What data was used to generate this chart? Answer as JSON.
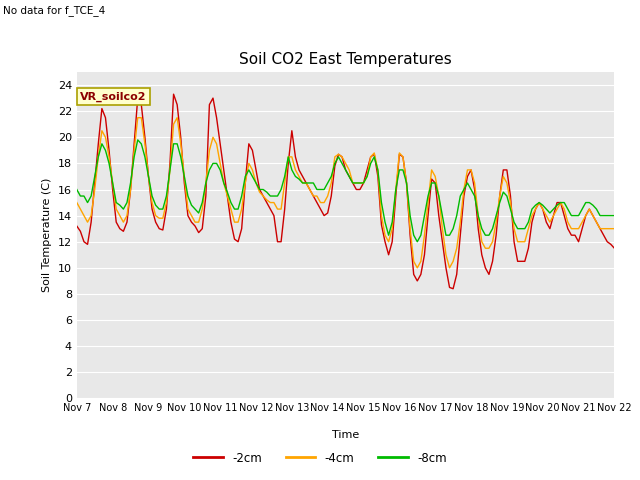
{
  "title": "Soil CO2 East Temperatures",
  "note": "No data for f_TCE_4",
  "ylabel": "Soil Temperature (C)",
  "xlabel": "Time",
  "legend_title": "VR_soilco2",
  "ylim": [
    0,
    25
  ],
  "yticks": [
    0,
    2,
    4,
    6,
    8,
    10,
    12,
    14,
    16,
    18,
    20,
    22,
    24
  ],
  "background_color": "#e8e8e8",
  "series": {
    "-2cm": {
      "color": "#cc0000",
      "x": [
        7.0,
        7.1,
        7.2,
        7.3,
        7.4,
        7.5,
        7.6,
        7.7,
        7.8,
        7.9,
        8.0,
        8.1,
        8.2,
        8.3,
        8.4,
        8.5,
        8.6,
        8.7,
        8.8,
        8.9,
        9.0,
        9.1,
        9.2,
        9.3,
        9.4,
        9.5,
        9.6,
        9.7,
        9.8,
        9.9,
        10.0,
        10.1,
        10.2,
        10.3,
        10.4,
        10.5,
        10.6,
        10.7,
        10.8,
        10.9,
        11.0,
        11.1,
        11.2,
        11.3,
        11.4,
        11.5,
        11.6,
        11.7,
        11.8,
        11.9,
        12.0,
        12.1,
        12.2,
        12.3,
        12.4,
        12.5,
        12.6,
        12.7,
        12.8,
        12.9,
        13.0,
        13.1,
        13.2,
        13.3,
        13.4,
        13.5,
        13.6,
        13.7,
        13.8,
        13.9,
        14.0,
        14.1,
        14.2,
        14.3,
        14.4,
        14.5,
        14.6,
        14.7,
        14.8,
        14.9,
        15.0,
        15.1,
        15.2,
        15.3,
        15.4,
        15.5,
        15.6,
        15.7,
        15.8,
        15.9,
        16.0,
        16.1,
        16.2,
        16.3,
        16.4,
        16.5,
        16.6,
        16.7,
        16.8,
        16.9,
        17.0,
        17.1,
        17.2,
        17.3,
        17.4,
        17.5,
        17.6,
        17.7,
        17.8,
        17.9,
        18.0,
        18.1,
        18.2,
        18.3,
        18.4,
        18.5,
        18.6,
        18.7,
        18.8,
        18.9,
        19.0,
        19.1,
        19.2,
        19.3,
        19.4,
        19.5,
        19.6,
        19.7,
        19.8,
        19.9,
        20.0,
        20.1,
        20.2,
        20.3,
        20.4,
        20.5,
        20.6,
        20.7,
        20.8,
        20.9,
        21.0,
        21.1,
        21.2,
        21.3,
        21.4,
        21.5,
        21.6,
        21.7,
        21.8,
        21.9,
        22.0
      ],
      "y": [
        13.2,
        12.8,
        12.0,
        11.8,
        13.5,
        16.5,
        19.5,
        22.2,
        21.5,
        19.0,
        16.0,
        13.5,
        13.0,
        12.8,
        13.5,
        16.0,
        19.5,
        23.0,
        22.5,
        20.0,
        17.0,
        14.5,
        13.5,
        13.0,
        12.9,
        14.5,
        18.0,
        23.3,
        22.5,
        20.0,
        16.5,
        14.0,
        13.5,
        13.2,
        12.7,
        13.0,
        15.5,
        22.5,
        23.0,
        21.5,
        19.5,
        17.5,
        15.5,
        13.5,
        12.2,
        12.0,
        13.0,
        16.5,
        19.5,
        19.0,
        17.5,
        16.0,
        15.5,
        15.0,
        14.5,
        14.0,
        12.0,
        12.0,
        14.5,
        18.0,
        20.5,
        18.5,
        17.5,
        17.0,
        16.5,
        16.0,
        15.5,
        15.0,
        14.5,
        14.0,
        14.2,
        15.5,
        17.8,
        18.7,
        18.5,
        17.5,
        17.0,
        16.5,
        16.0,
        16.0,
        16.5,
        17.5,
        18.5,
        18.7,
        17.0,
        13.3,
        12.0,
        11.0,
        12.0,
        15.5,
        18.7,
        18.5,
        16.5,
        12.5,
        9.5,
        9.0,
        9.5,
        11.0,
        14.0,
        16.8,
        16.5,
        14.0,
        12.0,
        10.0,
        8.5,
        8.4,
        9.5,
        12.5,
        15.5,
        17.0,
        17.5,
        16.0,
        13.0,
        11.0,
        10.0,
        9.5,
        10.5,
        12.5,
        15.5,
        17.5,
        17.5,
        15.5,
        12.0,
        10.5,
        10.5,
        10.5,
        11.5,
        13.5,
        14.5,
        15.0,
        14.5,
        13.5,
        13.0,
        14.0,
        15.0,
        15.0,
        14.0,
        13.0,
        12.5,
        12.5,
        12.0,
        13.0,
        14.0,
        14.5,
        14.0,
        13.5,
        13.0,
        12.5,
        12.0,
        11.8,
        11.5
      ]
    },
    "-4cm": {
      "color": "#ffa500",
      "x": [
        7.0,
        7.1,
        7.2,
        7.3,
        7.4,
        7.5,
        7.6,
        7.7,
        7.8,
        7.9,
        8.0,
        8.1,
        8.2,
        8.3,
        8.4,
        8.5,
        8.6,
        8.7,
        8.8,
        8.9,
        9.0,
        9.1,
        9.2,
        9.3,
        9.4,
        9.5,
        9.6,
        9.7,
        9.8,
        9.9,
        10.0,
        10.1,
        10.2,
        10.3,
        10.4,
        10.5,
        10.6,
        10.7,
        10.8,
        10.9,
        11.0,
        11.1,
        11.2,
        11.3,
        11.4,
        11.5,
        11.6,
        11.7,
        11.8,
        11.9,
        12.0,
        12.1,
        12.2,
        12.3,
        12.4,
        12.5,
        12.6,
        12.7,
        12.8,
        12.9,
        13.0,
        13.1,
        13.2,
        13.3,
        13.4,
        13.5,
        13.6,
        13.7,
        13.8,
        13.9,
        14.0,
        14.1,
        14.2,
        14.3,
        14.4,
        14.5,
        14.6,
        14.7,
        14.8,
        14.9,
        15.0,
        15.1,
        15.2,
        15.3,
        15.4,
        15.5,
        15.6,
        15.7,
        15.8,
        15.9,
        16.0,
        16.1,
        16.2,
        16.3,
        16.4,
        16.5,
        16.6,
        16.7,
        16.8,
        16.9,
        17.0,
        17.1,
        17.2,
        17.3,
        17.4,
        17.5,
        17.6,
        17.7,
        17.8,
        17.9,
        18.0,
        18.1,
        18.2,
        18.3,
        18.4,
        18.5,
        18.6,
        18.7,
        18.8,
        18.9,
        19.0,
        19.1,
        19.2,
        19.3,
        19.4,
        19.5,
        19.6,
        19.7,
        19.8,
        19.9,
        20.0,
        20.1,
        20.2,
        20.3,
        20.4,
        20.5,
        20.6,
        20.7,
        20.8,
        20.9,
        21.0,
        21.1,
        21.2,
        21.3,
        21.4,
        21.5,
        21.6,
        21.7,
        21.8,
        21.9,
        22.0
      ],
      "y": [
        15.0,
        14.5,
        14.0,
        13.5,
        14.0,
        16.0,
        18.5,
        20.5,
        20.0,
        18.5,
        16.5,
        14.5,
        14.0,
        13.5,
        14.0,
        16.0,
        19.0,
        21.5,
        21.5,
        19.5,
        17.0,
        15.0,
        14.0,
        13.8,
        13.8,
        15.0,
        17.5,
        21.0,
        21.5,
        19.5,
        17.0,
        14.5,
        14.0,
        13.5,
        13.5,
        14.5,
        16.5,
        19.0,
        20.0,
        19.5,
        18.0,
        16.5,
        15.5,
        14.5,
        13.5,
        13.5,
        14.5,
        16.5,
        18.0,
        17.5,
        16.5,
        15.8,
        15.5,
        15.2,
        15.0,
        15.0,
        14.5,
        14.5,
        16.5,
        18.5,
        18.5,
        17.5,
        17.0,
        16.5,
        16.5,
        16.0,
        15.5,
        15.5,
        15.0,
        15.0,
        15.5,
        16.5,
        18.5,
        18.7,
        18.5,
        18.0,
        17.5,
        16.5,
        16.5,
        16.5,
        16.5,
        17.0,
        18.5,
        18.8,
        17.5,
        14.0,
        12.5,
        12.0,
        13.0,
        16.0,
        18.8,
        18.5,
        16.5,
        13.0,
        10.5,
        10.0,
        10.5,
        12.5,
        15.0,
        17.5,
        17.0,
        15.5,
        13.0,
        11.0,
        10.0,
        10.5,
        11.5,
        13.5,
        16.0,
        17.5,
        17.5,
        16.5,
        14.0,
        12.0,
        11.5,
        11.5,
        12.0,
        13.5,
        15.5,
        17.0,
        16.5,
        15.0,
        13.0,
        12.0,
        12.0,
        12.0,
        13.0,
        14.0,
        14.5,
        15.0,
        14.5,
        14.0,
        13.5,
        14.0,
        14.5,
        15.0,
        14.5,
        13.5,
        13.0,
        13.0,
        13.0,
        13.5,
        14.0,
        14.5,
        14.0,
        13.5,
        13.0,
        13.0,
        13.0,
        13.0,
        13.0
      ]
    },
    "-8cm": {
      "color": "#00bb00",
      "x": [
        7.0,
        7.1,
        7.2,
        7.3,
        7.4,
        7.5,
        7.6,
        7.7,
        7.8,
        7.9,
        8.0,
        8.1,
        8.2,
        8.3,
        8.4,
        8.5,
        8.6,
        8.7,
        8.8,
        8.9,
        9.0,
        9.1,
        9.2,
        9.3,
        9.4,
        9.5,
        9.6,
        9.7,
        9.8,
        9.9,
        10.0,
        10.1,
        10.2,
        10.3,
        10.4,
        10.5,
        10.6,
        10.7,
        10.8,
        10.9,
        11.0,
        11.1,
        11.2,
        11.3,
        11.4,
        11.5,
        11.6,
        11.7,
        11.8,
        11.9,
        12.0,
        12.1,
        12.2,
        12.3,
        12.4,
        12.5,
        12.6,
        12.7,
        12.8,
        12.9,
        13.0,
        13.1,
        13.2,
        13.3,
        13.4,
        13.5,
        13.6,
        13.7,
        13.8,
        13.9,
        14.0,
        14.1,
        14.2,
        14.3,
        14.4,
        14.5,
        14.6,
        14.7,
        14.8,
        14.9,
        15.0,
        15.1,
        15.2,
        15.3,
        15.4,
        15.5,
        15.6,
        15.7,
        15.8,
        15.9,
        16.0,
        16.1,
        16.2,
        16.3,
        16.4,
        16.5,
        16.6,
        16.7,
        16.8,
        16.9,
        17.0,
        17.1,
        17.2,
        17.3,
        17.4,
        17.5,
        17.6,
        17.7,
        17.8,
        17.9,
        18.0,
        18.1,
        18.2,
        18.3,
        18.4,
        18.5,
        18.6,
        18.7,
        18.8,
        18.9,
        19.0,
        19.1,
        19.2,
        19.3,
        19.4,
        19.5,
        19.6,
        19.7,
        19.8,
        19.9,
        20.0,
        20.1,
        20.2,
        20.3,
        20.4,
        20.5,
        20.6,
        20.7,
        20.8,
        20.9,
        21.0,
        21.1,
        21.2,
        21.3,
        21.4,
        21.5,
        21.6,
        21.7,
        21.8,
        21.9,
        22.0
      ],
      "y": [
        16.0,
        15.5,
        15.5,
        15.0,
        15.5,
        17.0,
        18.5,
        19.5,
        19.0,
        18.0,
        16.5,
        15.0,
        14.8,
        14.5,
        15.0,
        16.5,
        18.5,
        19.8,
        19.5,
        18.5,
        17.0,
        15.5,
        14.8,
        14.5,
        14.5,
        15.5,
        17.5,
        19.5,
        19.5,
        18.5,
        17.0,
        15.5,
        14.8,
        14.5,
        14.2,
        15.0,
        16.5,
        17.5,
        18.0,
        18.0,
        17.5,
        16.5,
        15.8,
        15.0,
        14.5,
        14.5,
        15.5,
        17.0,
        17.5,
        17.0,
        16.5,
        16.0,
        16.0,
        15.8,
        15.5,
        15.5,
        15.5,
        16.0,
        17.0,
        18.5,
        17.5,
        17.0,
        16.8,
        16.5,
        16.5,
        16.5,
        16.5,
        16.0,
        16.0,
        16.0,
        16.5,
        17.0,
        18.0,
        18.5,
        18.0,
        17.5,
        17.0,
        16.5,
        16.5,
        16.5,
        16.5,
        17.0,
        18.0,
        18.5,
        17.5,
        15.0,
        13.5,
        12.5,
        13.5,
        16.0,
        17.5,
        17.5,
        16.5,
        14.0,
        12.5,
        12.0,
        12.5,
        14.0,
        15.5,
        16.5,
        16.5,
        15.5,
        14.0,
        12.5,
        12.5,
        13.0,
        14.0,
        15.5,
        16.0,
        16.5,
        16.0,
        15.5,
        14.0,
        13.0,
        12.5,
        12.5,
        13.0,
        14.0,
        15.0,
        15.8,
        15.5,
        14.5,
        13.5,
        13.0,
        13.0,
        13.0,
        13.5,
        14.5,
        14.8,
        15.0,
        14.8,
        14.5,
        14.2,
        14.5,
        14.8,
        15.0,
        15.0,
        14.5,
        14.0,
        14.0,
        14.0,
        14.5,
        15.0,
        15.0,
        14.8,
        14.5,
        14.0,
        14.0,
        14.0,
        14.0,
        14.0
      ]
    }
  },
  "xtick_positions": [
    7,
    8,
    9,
    10,
    11,
    12,
    13,
    14,
    15,
    16,
    17,
    18,
    19,
    20,
    21,
    22
  ],
  "xtick_labels": [
    "Nov 7",
    "Nov 8",
    "Nov 9",
    "Nov 10",
    "Nov 11",
    "Nov 12",
    "Nov 13",
    "Nov 14",
    "Nov 15",
    "Nov 16",
    "Nov 17",
    "Nov 18",
    "Nov 19",
    "Nov 20",
    "Nov 21",
    "Nov 22"
  ]
}
